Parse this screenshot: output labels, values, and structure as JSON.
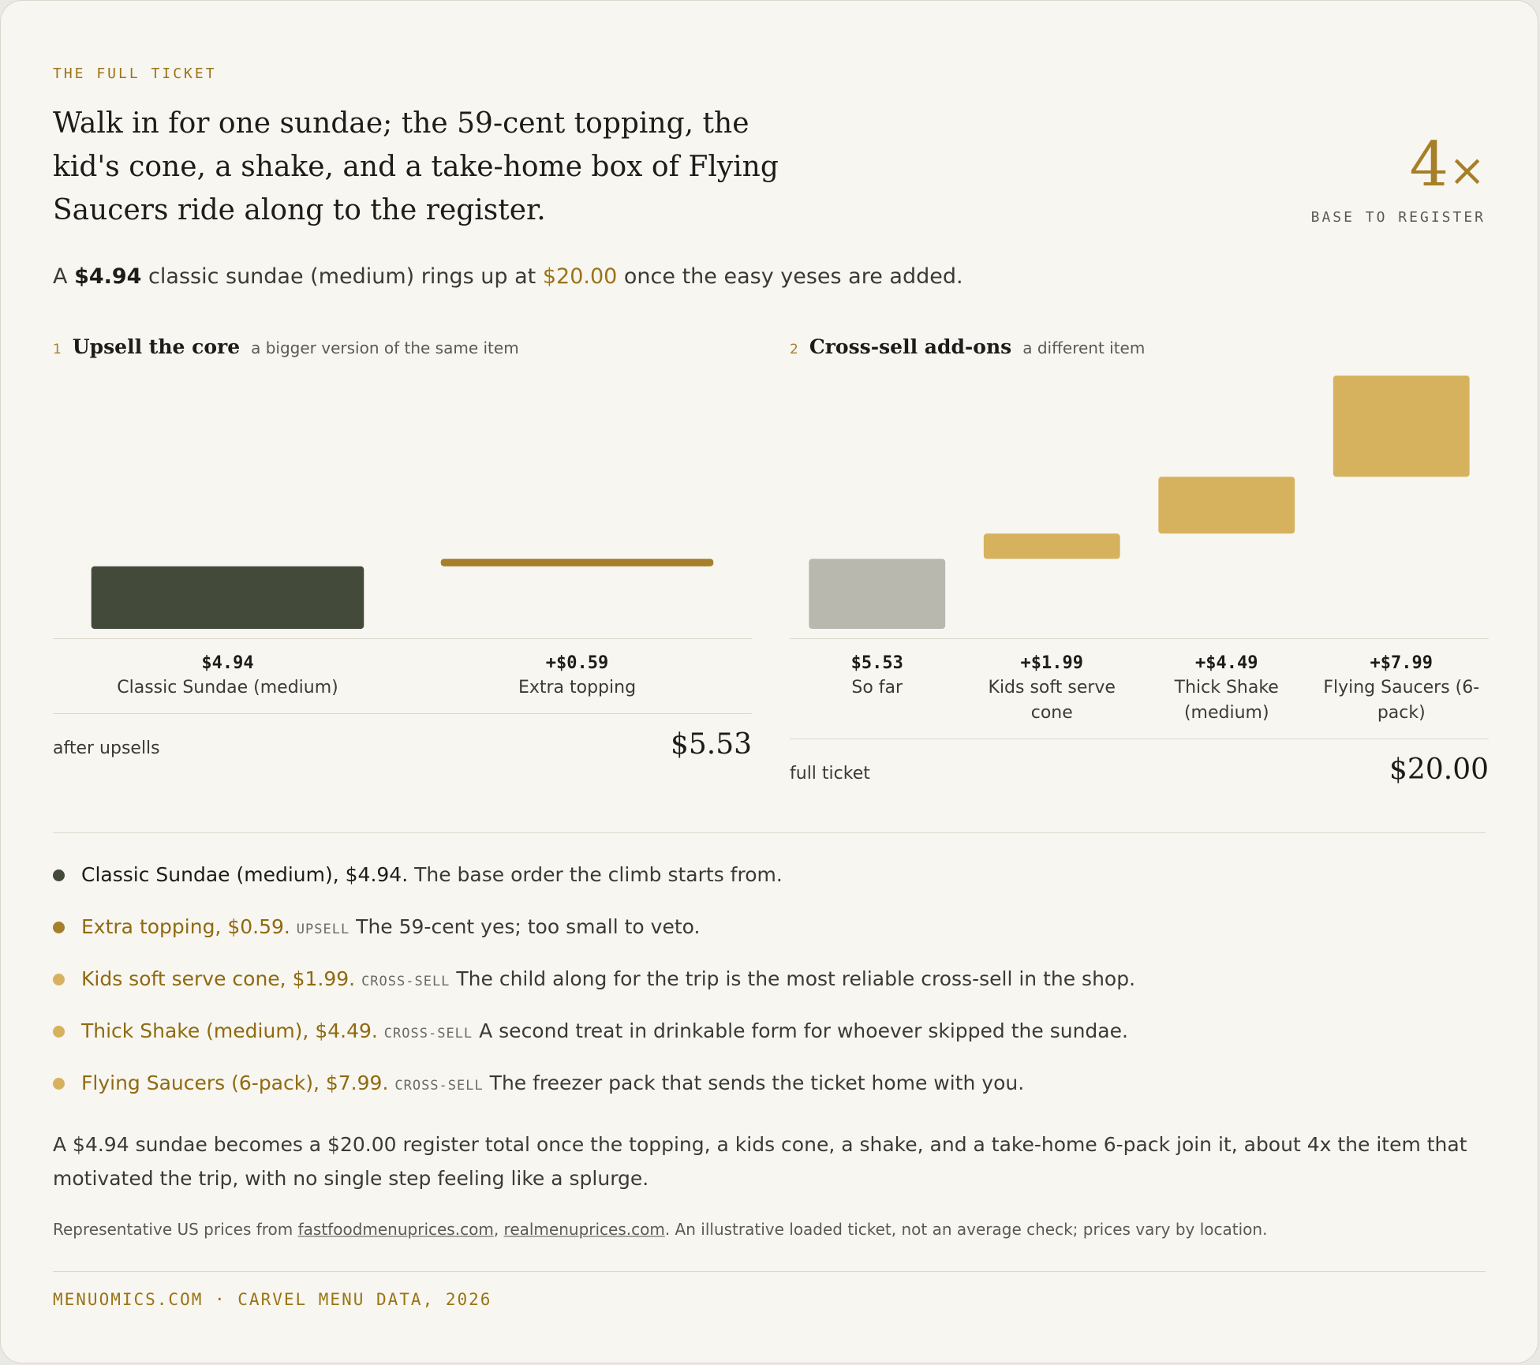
{
  "kicker": "THE FULL TICKET",
  "headline": "Walk in for one sundae; the 59-cent topping, the kid's cone, a shake, and a take-home box of Flying Saucers ride along to the register.",
  "stat_number": "4",
  "stat_symbol": "×",
  "stat_label": "BASE TO REGISTER",
  "summary": [
    "A ",
    "$4.94",
    " classic sundae (medium) rings up at ",
    "$20.00",
    " once the easy yeses are added."
  ],
  "chart_data": [
    {
      "type": "waterfall",
      "number": "1",
      "title": "Upsell the core",
      "subtitle": "a bigger version of the same item",
      "categories": [
        "Classic Sundae (medium)",
        "Extra topping"
      ],
      "values": [
        4.94,
        0.59
      ],
      "value_labels": [
        "$4.94",
        "+$0.59"
      ],
      "colors": [
        "#434a3a",
        "#a67f2a"
      ],
      "ylim": [
        0,
        20
      ],
      "total_label": "after upsells",
      "total_text": "$5.53"
    },
    {
      "type": "waterfall",
      "number": "2",
      "title": "Cross-sell add-ons",
      "subtitle": "a different item",
      "categories": [
        "So far",
        "Kids soft serve cone",
        "Thick Shake (medium)",
        "Flying Saucers (6-pack)"
      ],
      "values": [
        5.53,
        1.99,
        4.49,
        7.99
      ],
      "value_labels": [
        "$5.53",
        "+$1.99",
        "+$4.49",
        "+$7.99"
      ],
      "colors": [
        "#b8b8ae",
        "#d6b25e",
        "#d6b25e",
        "#d6b25e"
      ],
      "ylim": [
        0,
        20
      ],
      "total_label": "full ticket",
      "total_text": "$20.00"
    }
  ],
  "notes": [
    {
      "lead": "Classic Sundae (medium), $4.94.",
      "text": "The base order the climb starts from.",
      "color": "#434a3a",
      "lead_color": "#1c1c1a"
    },
    {
      "lead": "Extra topping, $0.59.",
      "tag": "UPSELL",
      "text": "The 59-cent yes; too small to veto.",
      "color": "#a67f2a",
      "lead_color": "#8f6a12"
    },
    {
      "lead": "Kids soft serve cone, $1.99.",
      "tag": "CROSS-SELL",
      "text": "The child along for the trip is the most reliable cross-sell in the shop.",
      "color": "#d6b25e",
      "lead_color": "#8f6a12"
    },
    {
      "lead": "Thick Shake (medium), $4.49.",
      "tag": "CROSS-SELL",
      "text": "A second treat in drinkable form for whoever skipped the sundae.",
      "color": "#d6b25e",
      "lead_color": "#8f6a12"
    },
    {
      "lead": "Flying Saucers (6-pack), $7.99.",
      "tag": "CROSS-SELL",
      "text": "The freezer pack that sends the ticket home with you.",
      "color": "#d6b25e",
      "lead_color": "#8f6a12"
    }
  ],
  "conclusion": "A $4.94 sundae becomes a $20.00 register total once the topping, a kids cone, a shake, and a take-home 6-pack join it, about 4x the item that motivated the trip, with no single step feeling like a splurge.",
  "sources": [
    "Representative US prices from ",
    "fastfoodmenuprices.com",
    ", ",
    "realmenuprices.com",
    ". An illustrative loaded ticket, not an average check; prices vary by location."
  ],
  "footer": "MENUOMICS.COM · CARVEL MENU DATA, 2026"
}
